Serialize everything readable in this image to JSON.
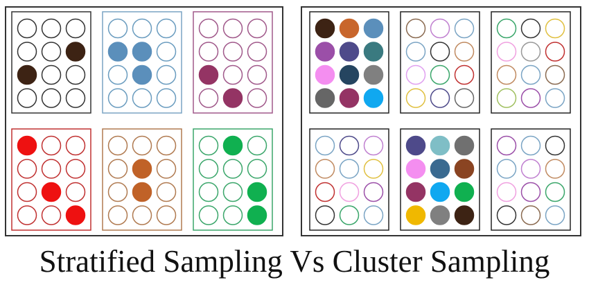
{
  "caption": "Stratified Sampling Vs Cluster Sampling"
}
